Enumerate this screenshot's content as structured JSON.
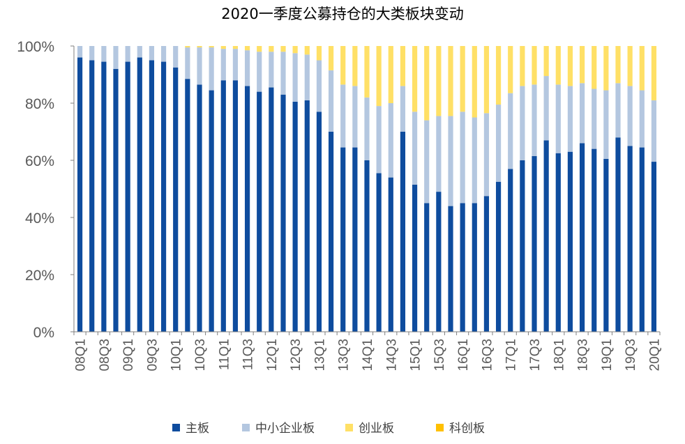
{
  "chart_data": {
    "type": "bar",
    "stacked": true,
    "title": "2020一季度公募持仓的大类板块变动",
    "xlabel": "",
    "ylabel": "",
    "ylim": [
      0,
      100
    ],
    "yticks": [
      "0%",
      "20%",
      "40%",
      "60%",
      "80%",
      "100%"
    ],
    "categories": [
      "08Q1",
      "08Q2",
      "08Q3",
      "08Q4",
      "09Q1",
      "09Q2",
      "09Q3",
      "09Q4",
      "10Q1",
      "10Q2",
      "10Q3",
      "10Q4",
      "11Q1",
      "11Q2",
      "11Q3",
      "11Q4",
      "12Q1",
      "12Q2",
      "12Q3",
      "12Q4",
      "13Q1",
      "13Q2",
      "13Q3",
      "13Q4",
      "14Q1",
      "14Q2",
      "14Q3",
      "14Q4",
      "15Q1",
      "15Q2",
      "15Q3",
      "15Q4",
      "16Q1",
      "16Q2",
      "16Q3",
      "16Q4",
      "17Q1",
      "17Q2",
      "17Q3",
      "17Q4",
      "18Q1",
      "18Q2",
      "18Q3",
      "18Q4",
      "19Q1",
      "19Q2",
      "19Q3",
      "19Q4",
      "20Q1"
    ],
    "visible_tick_labels": [
      "08Q1",
      "08Q3",
      "09Q1",
      "09Q3",
      "10Q1",
      "10Q3",
      "11Q1",
      "11Q3",
      "12Q1",
      "12Q3",
      "13Q1",
      "13Q3",
      "14Q1",
      "14Q3",
      "15Q1",
      "15Q3",
      "16Q1",
      "16Q3",
      "17Q1",
      "17Q3",
      "18Q1",
      "18Q3",
      "19Q1",
      "19Q3",
      "20Q1"
    ],
    "series": [
      {
        "name": "主板",
        "color": "#0e4c9e",
        "values": [
          96,
          95,
          94.5,
          92,
          94.5,
          96,
          95,
          94.5,
          92.5,
          88.5,
          86.5,
          84.5,
          88,
          88,
          86,
          84,
          85.5,
          83,
          80.5,
          81,
          77,
          70,
          64.5,
          64.5,
          60,
          55.5,
          54,
          70,
          51.5,
          45,
          49,
          44,
          45,
          45,
          47.5,
          52.5,
          57,
          60,
          61.5,
          67,
          62.5,
          63,
          66,
          64,
          60.5,
          68,
          65,
          64.5,
          59.5
        ]
      },
      {
        "name": "中小企业板",
        "color": "#b4c7e0",
        "values": [
          4,
          5,
          5.5,
          8,
          5.5,
          4,
          5,
          5.5,
          7.5,
          11,
          13,
          15,
          11,
          11,
          12.5,
          14,
          12.5,
          15,
          17,
          16,
          18,
          21.5,
          22,
          21.5,
          22,
          23.5,
          26,
          16,
          25.5,
          29,
          26.5,
          31.5,
          32,
          30,
          29,
          27,
          26.5,
          26,
          25,
          22.5,
          24,
          23,
          21,
          21,
          24,
          19,
          21,
          20,
          21.5
        ]
      },
      {
        "name": "创业板",
        "color": "#ffe066",
        "values": [
          0,
          0,
          0,
          0,
          0,
          0,
          0,
          0,
          0,
          0.5,
          0.5,
          0.5,
          1,
          1,
          1.5,
          2,
          2,
          2,
          2.5,
          3,
          5,
          8.5,
          13.5,
          14,
          18,
          21,
          20,
          14,
          23,
          26,
          24.5,
          24.5,
          23,
          25,
          23.5,
          20.5,
          16.5,
          14,
          13.5,
          10.5,
          13.5,
          14,
          13,
          15,
          15.5,
          13,
          14,
          15.5,
          19
        ]
      },
      {
        "name": "科创板",
        "color": "#ffc000",
        "values": [
          0,
          0,
          0,
          0,
          0,
          0,
          0,
          0,
          0,
          0,
          0,
          0,
          0,
          0,
          0,
          0,
          0,
          0,
          0,
          0,
          0,
          0,
          0,
          0,
          0,
          0,
          0,
          0,
          0,
          0,
          0,
          0,
          0,
          0,
          0,
          0,
          0,
          0,
          0,
          0,
          0,
          0,
          0,
          0,
          0,
          0,
          0,
          0.5,
          0.5
        ]
      }
    ],
    "legend_position": "bottom",
    "grid": false
  }
}
